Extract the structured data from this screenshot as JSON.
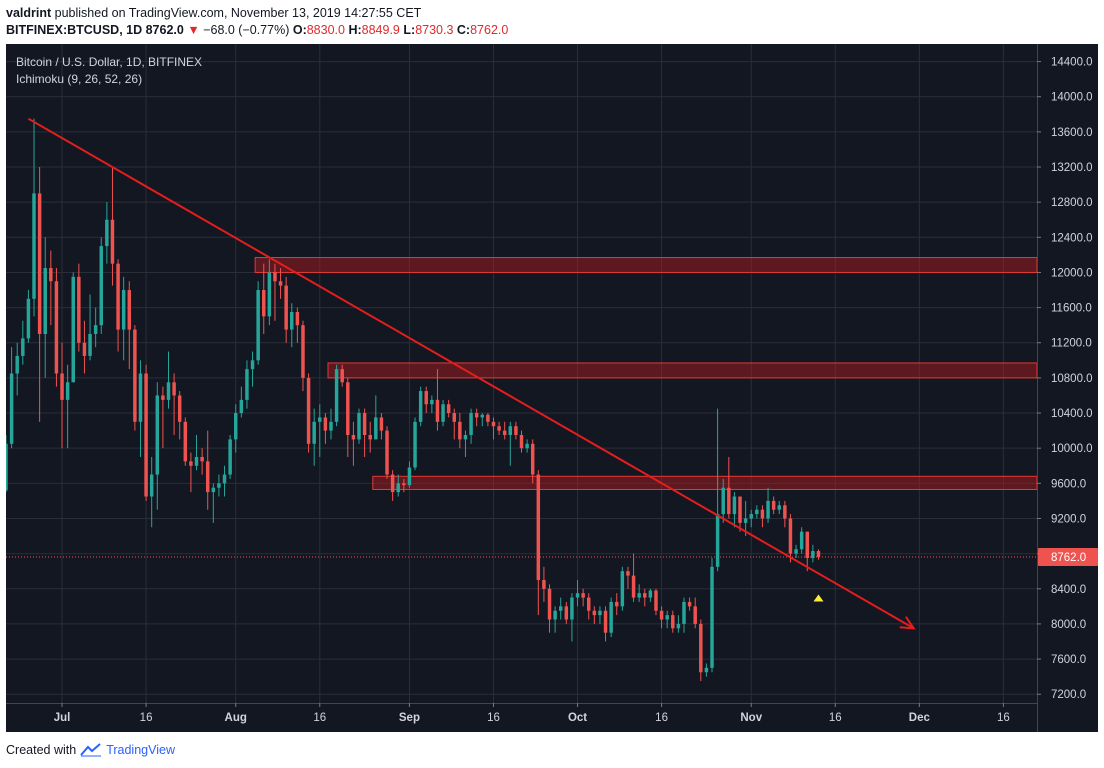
{
  "header": {
    "author": "valdrint",
    "published_text": "published on TradingView.com, November 13, 2019 14:27:55 CET"
  },
  "ohlc_bar": {
    "symbol": "BITFINEX:BTCUSD, 1D",
    "last": "8762.0",
    "change": "−68.0 (−0.77%)",
    "o_label": "O:",
    "o": "8830.0",
    "h_label": "H:",
    "h": "8849.9",
    "l_label": "L:",
    "l": "8730.3",
    "c_label": "C:",
    "c": "8762.0"
  },
  "legend": {
    "title": "Bitcoin / U.S. Dollar, 1D, BITFINEX",
    "indicator": "Ichimoku (9, 26, 52, 26)"
  },
  "footer": {
    "created_with": "Created with",
    "brand": "TradingView"
  },
  "colors": {
    "background": "#131722",
    "grid": "#2a2e39",
    "up": "#26a69a",
    "down": "#ef5350",
    "trendline": "#e51d1d",
    "zone": "#b71c1c",
    "axis_text": "#d1d4dc",
    "price_label": "#ef5350",
    "marker": "#ffeb3b"
  },
  "chart_data": {
    "type": "candlestick",
    "title": "Bitcoin / U.S. Dollar, 1D, BITFINEX",
    "price_axis_ticks": [
      "14400.0",
      "14000.0",
      "13600.0",
      "13200.0",
      "12800.0",
      "12400.0",
      "12000.0",
      "11600.0",
      "11200.0",
      "10800.0",
      "10400.0",
      "10000.0",
      "9600.0",
      "9200.0",
      "8800.0",
      "8400.0",
      "8000.0",
      "7600.0",
      "7200.0"
    ],
    "time_axis_ticks": [
      "Jul",
      "16",
      "Aug",
      "16",
      "Sep",
      "16",
      "Oct",
      "16",
      "Nov",
      "16",
      "Dec",
      "16"
    ],
    "current_price_label": "8762.0",
    "ylim": [
      7100,
      14600
    ],
    "xlim_dates": [
      "2019-06-21",
      "2019-12-22"
    ],
    "candles": [
      [
        "2019-06-21",
        9520,
        10150,
        9500,
        10050
      ],
      [
        "2019-06-22",
        10050,
        11150,
        10000,
        10850
      ],
      [
        "2019-06-23",
        10850,
        11200,
        10600,
        11050
      ],
      [
        "2019-06-24",
        11050,
        11450,
        10950,
        11250
      ],
      [
        "2019-06-25",
        11250,
        11800,
        11200,
        11700
      ],
      [
        "2019-06-26",
        11700,
        13750,
        11500,
        12900
      ],
      [
        "2019-06-27",
        12900,
        13200,
        10300,
        11300
      ],
      [
        "2019-06-28",
        11300,
        12400,
        10800,
        12050
      ],
      [
        "2019-06-29",
        12050,
        12250,
        11400,
        11900
      ],
      [
        "2019-06-30",
        11900,
        12050,
        10700,
        10850
      ],
      [
        "2019-07-01",
        10850,
        11200,
        10000,
        10550
      ],
      [
        "2019-07-02",
        10550,
        10950,
        10000,
        10750
      ],
      [
        "2019-07-03",
        10750,
        12000,
        10750,
        11950
      ],
      [
        "2019-07-04",
        11950,
        12100,
        11100,
        11200
      ],
      [
        "2019-07-05",
        11200,
        11450,
        10850,
        11050
      ],
      [
        "2019-07-06",
        11050,
        11750,
        11000,
        11300
      ],
      [
        "2019-07-07",
        11300,
        11600,
        11150,
        11400
      ],
      [
        "2019-07-08",
        11400,
        12400,
        11300,
        12300
      ],
      [
        "2019-07-09",
        12300,
        12800,
        12100,
        12600
      ],
      [
        "2019-07-10",
        12600,
        13200,
        11850,
        12100
      ],
      [
        "2019-07-11",
        12100,
        12150,
        11100,
        11350
      ],
      [
        "2019-07-12",
        11350,
        11950,
        11000,
        11800
      ],
      [
        "2019-07-13",
        11800,
        11900,
        10900,
        11350
      ],
      [
        "2019-07-14",
        11350,
        11400,
        10200,
        10300
      ],
      [
        "2019-07-15",
        10300,
        11000,
        9900,
        10850
      ],
      [
        "2019-07-16",
        10850,
        10950,
        9400,
        9450
      ],
      [
        "2019-07-17",
        9450,
        9900,
        9100,
        9700
      ],
      [
        "2019-07-18",
        9700,
        10750,
        9300,
        10600
      ],
      [
        "2019-07-19",
        10600,
        10700,
        10000,
        10550
      ],
      [
        "2019-07-20",
        10550,
        11100,
        10450,
        10750
      ],
      [
        "2019-07-21",
        10750,
        10850,
        10150,
        10600
      ],
      [
        "2019-07-22",
        10600,
        10650,
        10100,
        10300
      ],
      [
        "2019-07-23",
        10300,
        10350,
        9800,
        9850
      ],
      [
        "2019-07-24",
        9850,
        9950,
        9500,
        9800
      ],
      [
        "2019-07-25",
        9800,
        10150,
        9750,
        9900
      ],
      [
        "2019-07-26",
        9900,
        10000,
        9700,
        9850
      ],
      [
        "2019-07-27",
        9850,
        10200,
        9300,
        9500
      ],
      [
        "2019-07-28",
        9500,
        9600,
        9150,
        9550
      ],
      [
        "2019-07-29",
        9550,
        9700,
        9450,
        9600
      ],
      [
        "2019-07-30",
        9600,
        9800,
        9450,
        9700
      ],
      [
        "2019-07-31",
        9700,
        10150,
        9650,
        10100
      ],
      [
        "2019-08-01",
        10100,
        10500,
        9950,
        10400
      ],
      [
        "2019-08-02",
        10400,
        10700,
        10350,
        10550
      ],
      [
        "2019-08-03",
        10550,
        11000,
        10450,
        10900
      ],
      [
        "2019-08-04",
        10900,
        11100,
        10700,
        11000
      ],
      [
        "2019-08-05",
        11000,
        11900,
        10950,
        11800
      ],
      [
        "2019-08-06",
        11800,
        12100,
        11300,
        11500
      ],
      [
        "2019-08-07",
        11500,
        12150,
        11400,
        12000
      ],
      [
        "2019-08-08",
        12000,
        12100,
        11450,
        11900
      ],
      [
        "2019-08-09",
        11900,
        12050,
        11700,
        11850
      ],
      [
        "2019-08-10",
        11850,
        11950,
        11200,
        11350
      ],
      [
        "2019-08-11",
        11350,
        11650,
        11150,
        11550
      ],
      [
        "2019-08-12",
        11550,
        11600,
        11200,
        11400
      ],
      [
        "2019-08-13",
        11400,
        11450,
        10650,
        10800
      ],
      [
        "2019-08-14",
        10800,
        10850,
        9950,
        10050
      ],
      [
        "2019-08-15",
        10050,
        10450,
        9800,
        10300
      ],
      [
        "2019-08-16",
        10300,
        10500,
        9900,
        10350
      ],
      [
        "2019-08-17",
        10350,
        10400,
        10050,
        10200
      ],
      [
        "2019-08-18",
        10200,
        10450,
        10100,
        10300
      ],
      [
        "2019-08-19",
        10300,
        10950,
        10250,
        10900
      ],
      [
        "2019-08-20",
        10900,
        10950,
        10700,
        10750
      ],
      [
        "2019-08-21",
        10750,
        10800,
        9900,
        10150
      ],
      [
        "2019-08-22",
        10150,
        10300,
        9800,
        10100
      ],
      [
        "2019-08-23",
        10100,
        10450,
        10050,
        10400
      ],
      [
        "2019-08-24",
        10400,
        10450,
        9900,
        10150
      ],
      [
        "2019-08-25",
        10150,
        10300,
        9950,
        10100
      ],
      [
        "2019-08-26",
        10100,
        10600,
        10100,
        10350
      ],
      [
        "2019-08-27",
        10350,
        10400,
        10100,
        10200
      ],
      [
        "2019-08-28",
        10200,
        10250,
        9650,
        9700
      ],
      [
        "2019-08-29",
        9700,
        9750,
        9400,
        9500
      ],
      [
        "2019-08-30",
        9500,
        9700,
        9450,
        9600
      ],
      [
        "2019-08-31",
        9600,
        9650,
        9500,
        9580
      ],
      [
        "2019-09-01",
        9580,
        9850,
        9550,
        9780
      ],
      [
        "2019-09-02",
        9780,
        10350,
        9750,
        10300
      ],
      [
        "2019-09-03",
        10300,
        10700,
        10250,
        10650
      ],
      [
        "2019-09-04",
        10650,
        10700,
        10400,
        10500
      ],
      [
        "2019-09-05",
        10500,
        10600,
        10400,
        10550
      ],
      [
        "2019-09-06",
        10550,
        10900,
        10200,
        10300
      ],
      [
        "2019-09-07",
        10300,
        10550,
        10250,
        10500
      ],
      [
        "2019-09-08",
        10500,
        10550,
        10350,
        10400
      ],
      [
        "2019-09-09",
        10400,
        10450,
        10100,
        10300
      ],
      [
        "2019-09-10",
        10300,
        10400,
        10000,
        10100
      ],
      [
        "2019-09-11",
        10100,
        10200,
        9900,
        10150
      ],
      [
        "2019-09-12",
        10150,
        10450,
        10050,
        10400
      ],
      [
        "2019-09-13",
        10400,
        10450,
        10250,
        10350
      ],
      [
        "2019-09-14",
        10350,
        10400,
        10250,
        10380
      ],
      [
        "2019-09-15",
        10380,
        10400,
        10250,
        10300
      ],
      [
        "2019-09-16",
        10300,
        10350,
        10100,
        10250
      ],
      [
        "2019-09-17",
        10250,
        10300,
        10150,
        10200
      ],
      [
        "2019-09-18",
        10200,
        10300,
        10100,
        10150
      ],
      [
        "2019-09-19",
        10150,
        10300,
        9800,
        10250
      ],
      [
        "2019-09-20",
        10250,
        10300,
        10100,
        10150
      ],
      [
        "2019-09-21",
        10150,
        10200,
        9950,
        10000
      ],
      [
        "2019-09-22",
        10000,
        10100,
        9950,
        10050
      ],
      [
        "2019-09-23",
        10050,
        10100,
        9600,
        9700
      ],
      [
        "2019-09-24",
        9700,
        9750,
        8100,
        8500
      ],
      [
        "2019-09-25",
        8500,
        8650,
        8250,
        8400
      ],
      [
        "2019-09-26",
        8400,
        8450,
        7900,
        8050
      ],
      [
        "2019-09-27",
        8050,
        8200,
        7900,
        8150
      ],
      [
        "2019-09-28",
        8150,
        8300,
        8050,
        8200
      ],
      [
        "2019-09-29",
        8200,
        8250,
        8000,
        8050
      ],
      [
        "2019-09-30",
        8050,
        8350,
        7800,
        8300
      ],
      [
        "2019-10-01",
        8300,
        8500,
        8200,
        8350
      ],
      [
        "2019-10-02",
        8350,
        8400,
        8200,
        8300
      ],
      [
        "2019-10-03",
        8300,
        8350,
        8050,
        8150
      ],
      [
        "2019-10-04",
        8150,
        8200,
        8000,
        8100
      ],
      [
        "2019-10-05",
        8100,
        8200,
        8000,
        8150
      ],
      [
        "2019-10-06",
        8150,
        8200,
        7800,
        7900
      ],
      [
        "2019-10-07",
        7900,
        8300,
        7850,
        8250
      ],
      [
        "2019-10-08",
        8250,
        8350,
        8100,
        8200
      ],
      [
        "2019-10-09",
        8200,
        8650,
        8150,
        8600
      ],
      [
        "2019-10-10",
        8600,
        8650,
        8400,
        8550
      ],
      [
        "2019-10-11",
        8550,
        8800,
        8250,
        8300
      ],
      [
        "2019-10-12",
        8300,
        8450,
        8250,
        8350
      ],
      [
        "2019-10-13",
        8350,
        8400,
        8200,
        8300
      ],
      [
        "2019-10-14",
        8300,
        8400,
        8250,
        8380
      ],
      [
        "2019-10-15",
        8380,
        8400,
        8100,
        8150
      ],
      [
        "2019-10-16",
        8150,
        8200,
        7950,
        8050
      ],
      [
        "2019-10-17",
        8050,
        8150,
        7950,
        8100
      ],
      [
        "2019-10-18",
        8100,
        8150,
        7900,
        7950
      ],
      [
        "2019-10-19",
        7950,
        8100,
        7900,
        8000
      ],
      [
        "2019-10-20",
        8000,
        8300,
        7900,
        8250
      ],
      [
        "2019-10-21",
        8250,
        8300,
        8150,
        8200
      ],
      [
        "2019-10-22",
        8200,
        8300,
        7950,
        8000
      ],
      [
        "2019-10-23",
        8000,
        8050,
        7350,
        7450
      ],
      [
        "2019-10-24",
        7450,
        7550,
        7400,
        7500
      ],
      [
        "2019-10-25",
        7500,
        8750,
        7450,
        8650
      ],
      [
        "2019-10-26",
        8650,
        10450,
        8600,
        9250
      ],
      [
        "2019-10-27",
        9250,
        9650,
        9150,
        9550
      ],
      [
        "2019-10-28",
        9550,
        9900,
        9200,
        9250
      ],
      [
        "2019-10-29",
        9250,
        9500,
        9100,
        9450
      ],
      [
        "2019-10-30",
        9450,
        9450,
        9050,
        9150
      ],
      [
        "2019-10-31",
        9150,
        9400,
        9000,
        9200
      ],
      [
        "2019-11-01",
        9200,
        9300,
        9100,
        9250
      ],
      [
        "2019-11-02",
        9250,
        9350,
        9200,
        9300
      ],
      [
        "2019-11-03",
        9300,
        9350,
        9100,
        9200
      ],
      [
        "2019-11-04",
        9200,
        9550,
        9150,
        9400
      ],
      [
        "2019-11-05",
        9400,
        9450,
        9250,
        9300
      ],
      [
        "2019-11-06",
        9300,
        9400,
        9250,
        9350
      ],
      [
        "2019-11-07",
        9350,
        9400,
        9100,
        9200
      ],
      [
        "2019-11-08",
        9200,
        9250,
        8700,
        8800
      ],
      [
        "2019-11-09",
        8800,
        8900,
        8750,
        8850
      ],
      [
        "2019-11-10",
        8850,
        9100,
        8800,
        9050
      ],
      [
        "2019-11-11",
        9050,
        9050,
        8600,
        8750
      ],
      [
        "2019-11-12",
        8750,
        8900,
        8700,
        8830
      ],
      [
        "2019-11-13",
        8830,
        8850,
        8730,
        8762
      ]
    ],
    "zones": [
      {
        "from": "2019-08-05",
        "y1": 12000,
        "y2": 12170
      },
      {
        "from": "2019-08-18",
        "y1": 10800,
        "y2": 10970
      },
      {
        "from": "2019-08-26",
        "y1": 9530,
        "y2": 9680
      }
    ],
    "trendline": {
      "start": [
        "2019-06-25",
        13750
      ],
      "end": [
        "2019-11-30",
        7950
      ]
    },
    "marker": {
      "date": "2019-11-13",
      "price": 8300
    },
    "current_price": 8762
  }
}
